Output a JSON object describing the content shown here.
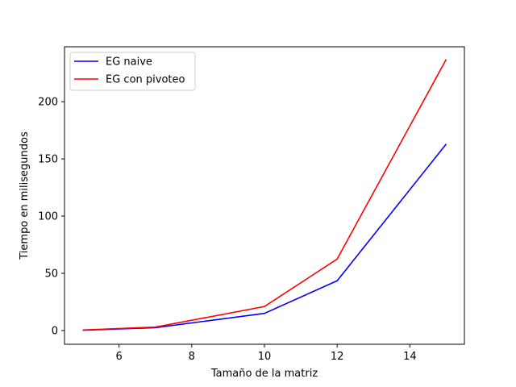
{
  "chart_data": {
    "type": "line",
    "title": "",
    "xlabel": "Tamaño de la matriz",
    "ylabel": "Tiempo en milisegundos",
    "xlim": [
      4.5,
      15.5
    ],
    "ylim": [
      -12,
      248
    ],
    "xticks": [
      6,
      8,
      10,
      12,
      14
    ],
    "yticks": [
      0,
      50,
      100,
      150,
      200
    ],
    "grid": false,
    "legend_position": "top-left",
    "x": [
      5,
      7,
      10,
      12,
      15
    ],
    "series": [
      {
        "name": "EG naive",
        "color": "#0000ff",
        "values": [
          0.3,
          2.5,
          15,
          43.5,
          163
        ]
      },
      {
        "name": "EG con pivoteo",
        "color": "#ff0000",
        "values": [
          0.5,
          3,
          21,
          62.5,
          237
        ]
      }
    ]
  }
}
